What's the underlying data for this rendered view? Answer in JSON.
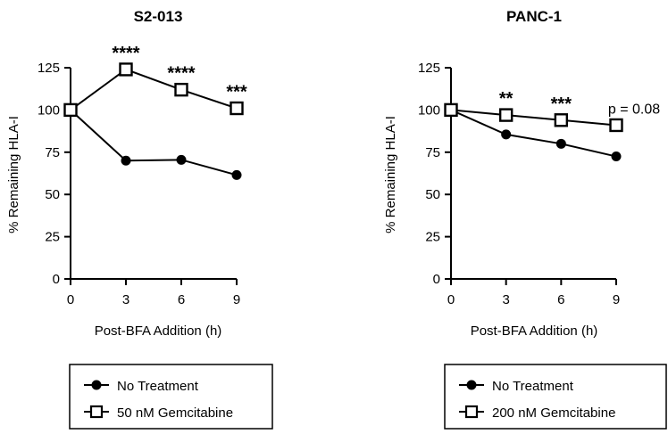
{
  "chart_data": [
    {
      "type": "line",
      "title": "S2-013",
      "xlabel": "Post-BFA Addition (h)",
      "ylabel": "% Remaining HLA-I",
      "x": [
        0,
        3,
        6,
        9
      ],
      "xticks": [
        "0",
        "3",
        "6",
        "9"
      ],
      "yticks": [
        "0",
        "25",
        "50",
        "75",
        "100",
        "125"
      ],
      "xlim": [
        0,
        9
      ],
      "ylim": [
        0,
        125
      ],
      "series": [
        {
          "name": "No Treatment",
          "marker": "filled-circle",
          "values": [
            100,
            70,
            70.5,
            61.5
          ]
        },
        {
          "name": "50 nM Gemcitabine",
          "marker": "open-square",
          "values": [
            100,
            124,
            112,
            101
          ]
        }
      ],
      "annotations": [
        {
          "x": 3,
          "text": "****"
        },
        {
          "x": 6,
          "text": "****"
        },
        {
          "x": 9,
          "text": "***"
        }
      ],
      "legend": [
        "No Treatment",
        "50 nM Gemcitabine"
      ]
    },
    {
      "type": "line",
      "title": "PANC-1",
      "xlabel": "Post-BFA Addition (h)",
      "ylabel": "% Remaining HLA-I",
      "x": [
        0,
        3,
        6,
        9
      ],
      "xticks": [
        "0",
        "3",
        "6",
        "9"
      ],
      "yticks": [
        "0",
        "25",
        "50",
        "75",
        "100",
        "125"
      ],
      "xlim": [
        0,
        9
      ],
      "ylim": [
        0,
        125
      ],
      "series": [
        {
          "name": "No Treatment",
          "marker": "filled-circle",
          "values": [
            100,
            85.5,
            80,
            72.5
          ]
        },
        {
          "name": "200 nM Gemcitabine",
          "marker": "open-square",
          "values": [
            100,
            97,
            94,
            91
          ]
        }
      ],
      "annotations": [
        {
          "x": 3,
          "text": "**"
        },
        {
          "x": 6,
          "text": "***"
        },
        {
          "x": 9,
          "text": "p = 0.08"
        }
      ],
      "legend": [
        "No Treatment",
        "200 nM Gemcitabine"
      ]
    }
  ]
}
